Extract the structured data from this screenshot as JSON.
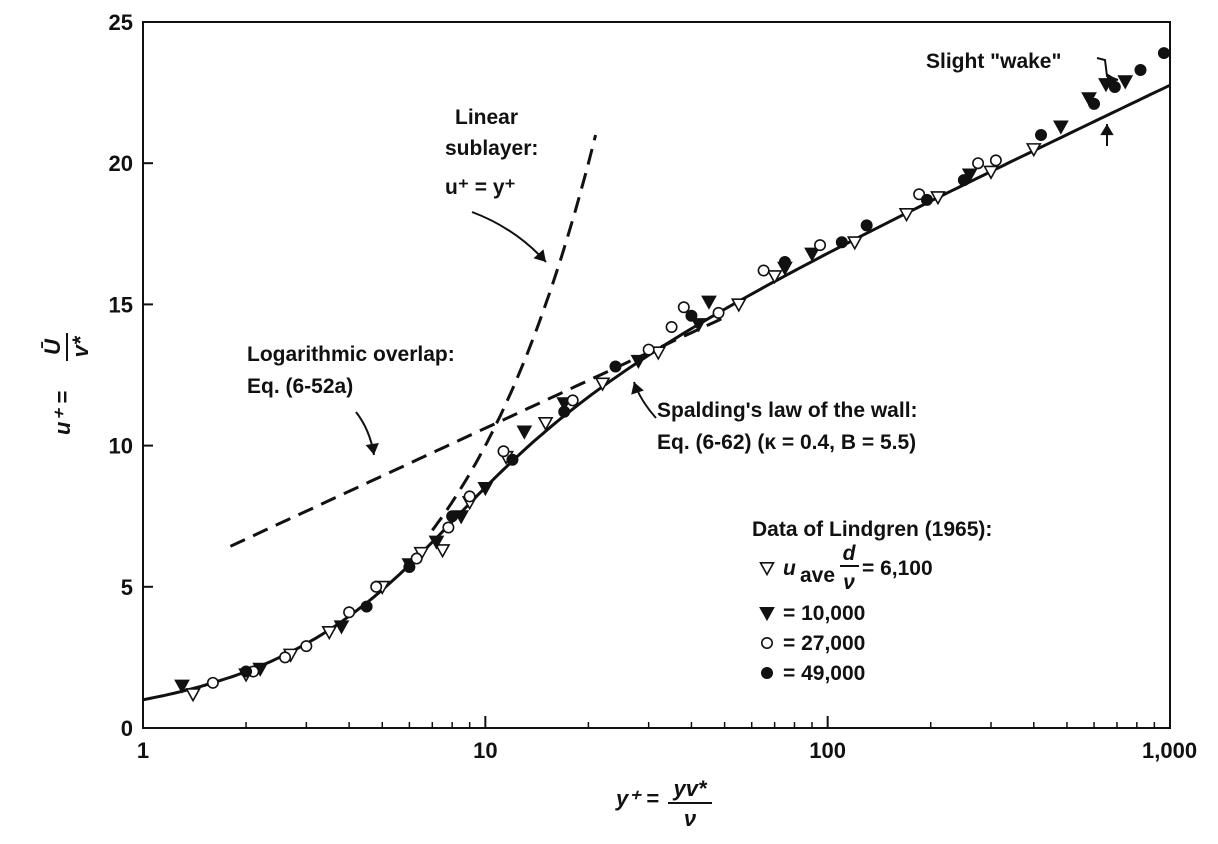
{
  "chart_data": {
    "type": "scatter",
    "title": "",
    "xscale": "log",
    "xlim": [
      1,
      1000
    ],
    "ylim": [
      0,
      25
    ],
    "grid": false,
    "xticks": [
      {
        "value": 1,
        "label": "1"
      },
      {
        "value": 10,
        "label": "10"
      },
      {
        "value": 100,
        "label": "100"
      },
      {
        "value": 1000,
        "label": "1,000"
      }
    ],
    "yticks": [
      {
        "value": 0,
        "label": "0"
      },
      {
        "value": 5,
        "label": "5"
      },
      {
        "value": 10,
        "label": "10"
      },
      {
        "value": 15,
        "label": "15"
      },
      {
        "value": 20,
        "label": "20"
      },
      {
        "value": 25,
        "label": "25"
      }
    ],
    "xlabel": {
      "main": "y⁺ =",
      "num": "yv*",
      "den": "ν"
    },
    "ylabel": {
      "main": "u⁺ =",
      "num": "Ū",
      "den": "v*"
    },
    "annotations": {
      "linear": [
        "Linear",
        "sublayer:",
        "u⁺ = y⁺"
      ],
      "log": [
        "Logarithmic overlap:",
        "Eq. (6-52a)"
      ],
      "spalding": [
        "Spalding's law of the wall:",
        "Eq. (6-62)  (κ = 0.4, B = 5.5)"
      ],
      "wake": "Slight \"wake\""
    },
    "legend": {
      "title": "Data of Lindgren (1965):",
      "entries": [
        {
          "marker": "triangle-open",
          "prefix": "u",
          "sub": "ave",
          "frac_num": "d",
          "frac_den": "ν",
          "value": "= 6,100"
        },
        {
          "marker": "triangle-filled",
          "value": "= 10,000"
        },
        {
          "marker": "circle-open",
          "value": "= 27,000"
        },
        {
          "marker": "circle-filled",
          "value": "= 49,000"
        }
      ]
    },
    "lines": {
      "linear_sublayer": {
        "style": "dashed",
        "x_range": [
          7,
          21
        ]
      },
      "log_overlap": {
        "style": "dashed",
        "x_range": [
          1.8,
          50
        ],
        "kappa": 0.41,
        "B": 5.0
      },
      "spalding": {
        "style": "solid",
        "x_range": [
          1,
          1000
        ],
        "kappa": 0.4,
        "B": 5.5
      }
    },
    "series": [
      {
        "marker": "triangle-open",
        "points": [
          [
            1.4,
            1.2
          ],
          [
            2.0,
            1.9
          ],
          [
            2.7,
            2.6
          ],
          [
            3.5,
            3.4
          ],
          [
            5.0,
            5.0
          ],
          [
            6.5,
            6.2
          ],
          [
            7.5,
            6.3
          ],
          [
            9.0,
            8.0
          ],
          [
            11.5,
            9.6
          ],
          [
            15.0,
            10.8
          ],
          [
            22.0,
            12.2
          ],
          [
            32.0,
            13.3
          ],
          [
            55.0,
            15.0
          ],
          [
            70.0,
            16.0
          ],
          [
            120.0,
            17.2
          ],
          [
            170.0,
            18.2
          ],
          [
            210.0,
            18.8
          ],
          [
            300.0,
            19.7
          ],
          [
            400.0,
            20.5
          ]
        ]
      },
      {
        "marker": "triangle-filled",
        "points": [
          [
            1.3,
            1.5
          ],
          [
            2.2,
            2.1
          ],
          [
            3.8,
            3.6
          ],
          [
            6.0,
            5.8
          ],
          [
            7.2,
            6.6
          ],
          [
            8.5,
            7.5
          ],
          [
            10.0,
            8.5
          ],
          [
            13.0,
            10.5
          ],
          [
            17.0,
            11.5
          ],
          [
            28.0,
            13.0
          ],
          [
            42.0,
            14.3
          ],
          [
            45.0,
            15.1
          ],
          [
            75.0,
            16.3
          ],
          [
            90.0,
            16.8
          ],
          [
            260.0,
            19.6
          ],
          [
            480.0,
            21.3
          ],
          [
            580.0,
            22.3
          ],
          [
            650.0,
            22.8
          ],
          [
            740.0,
            22.9
          ]
        ]
      },
      {
        "marker": "circle-open",
        "points": [
          [
            1.6,
            1.6
          ],
          [
            2.1,
            2.0
          ],
          [
            2.6,
            2.5
          ],
          [
            3.0,
            2.9
          ],
          [
            4.0,
            4.1
          ],
          [
            4.8,
            5.0
          ],
          [
            6.3,
            6.0
          ],
          [
            7.8,
            7.1
          ],
          [
            9.0,
            8.2
          ],
          [
            11.3,
            9.8
          ],
          [
            18.0,
            11.6
          ],
          [
            30.0,
            13.4
          ],
          [
            35.0,
            14.2
          ],
          [
            38.0,
            14.9
          ],
          [
            48.0,
            14.7
          ],
          [
            65.0,
            16.2
          ],
          [
            95.0,
            17.1
          ],
          [
            185.0,
            18.9
          ],
          [
            275.0,
            20.0
          ],
          [
            310.0,
            20.1
          ]
        ]
      },
      {
        "marker": "circle-filled",
        "points": [
          [
            2.0,
            2.0
          ],
          [
            4.5,
            4.3
          ],
          [
            6.0,
            5.7
          ],
          [
            8.0,
            7.5
          ],
          [
            12.0,
            9.5
          ],
          [
            17.0,
            11.2
          ],
          [
            24.0,
            12.8
          ],
          [
            40.0,
            14.6
          ],
          [
            75.0,
            16.5
          ],
          [
            110.0,
            17.2
          ],
          [
            130.0,
            17.8
          ],
          [
            195.0,
            18.7
          ],
          [
            250.0,
            19.4
          ],
          [
            420.0,
            21.0
          ],
          [
            600.0,
            22.1
          ],
          [
            690.0,
            22.7
          ],
          [
            820.0,
            23.3
          ],
          [
            960.0,
            23.9
          ]
        ]
      }
    ]
  }
}
